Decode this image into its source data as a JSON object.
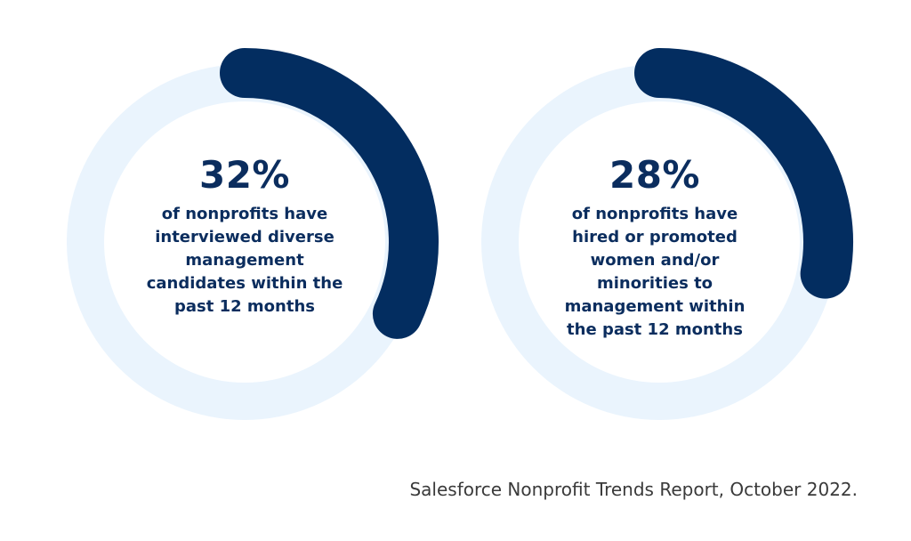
{
  "chart_data": [
    {
      "type": "pie",
      "value": 32,
      "value_label": "32%",
      "caption": "of nonprofits have interviewed diverse management candidates within the past 12 months",
      "track_color": "#eaf4fd",
      "fill_color": "#032d60"
    },
    {
      "type": "pie",
      "value": 28,
      "value_label": "28%",
      "caption": "of nonprofits have hired or promoted women and/or minorities to management within the past 12 months",
      "track_color": "#eaf4fd",
      "fill_color": "#032d60"
    }
  ],
  "source": "Salesforce Nonprofit Trends Report, October 2022."
}
